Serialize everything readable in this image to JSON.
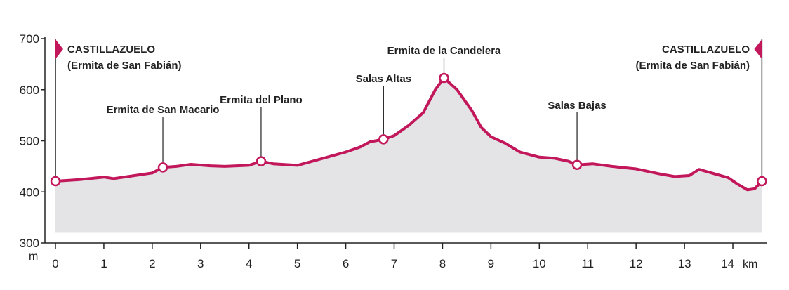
{
  "chart_data": {
    "type": "area",
    "y_unit": "m",
    "x_unit": "km",
    "xlim": [
      0,
      14.6
    ],
    "ylim": [
      300,
      700
    ],
    "area_base": 320,
    "x_ticks": [
      "0",
      "1",
      "2",
      "3",
      "4",
      "5",
      "6",
      "7",
      "8",
      "9",
      "10",
      "11",
      "12",
      "13",
      "14"
    ],
    "y_ticks": [
      "300",
      "400",
      "500",
      "600",
      "700"
    ],
    "colors": {
      "line": "#c2185b",
      "fill": "#e4e4e6",
      "axis": "#222222"
    },
    "profile": [
      [
        0,
        421
      ],
      [
        0.5,
        424
      ],
      [
        1.0,
        429
      ],
      [
        1.2,
        426
      ],
      [
        1.5,
        430
      ],
      [
        2.0,
        437
      ],
      [
        2.22,
        448
      ],
      [
        2.5,
        450
      ],
      [
        2.8,
        454
      ],
      [
        3.2,
        451
      ],
      [
        3.5,
        450
      ],
      [
        4.0,
        452
      ],
      [
        4.25,
        460
      ],
      [
        4.5,
        455
      ],
      [
        5.0,
        452
      ],
      [
        5.5,
        465
      ],
      [
        6.0,
        478
      ],
      [
        6.3,
        488
      ],
      [
        6.5,
        498
      ],
      [
        6.78,
        503
      ],
      [
        7.0,
        510
      ],
      [
        7.3,
        530
      ],
      [
        7.6,
        555
      ],
      [
        7.85,
        600
      ],
      [
        8.03,
        623
      ],
      [
        8.3,
        600
      ],
      [
        8.6,
        560
      ],
      [
        8.8,
        526
      ],
      [
        9.0,
        508
      ],
      [
        9.3,
        495
      ],
      [
        9.6,
        478
      ],
      [
        10.0,
        468
      ],
      [
        10.3,
        466
      ],
      [
        10.6,
        460
      ],
      [
        10.78,
        453
      ],
      [
        11.1,
        455
      ],
      [
        11.5,
        450
      ],
      [
        12.0,
        445
      ],
      [
        12.5,
        435
      ],
      [
        12.8,
        430
      ],
      [
        13.1,
        432
      ],
      [
        13.3,
        444
      ],
      [
        13.6,
        436
      ],
      [
        13.9,
        428
      ],
      [
        14.1,
        415
      ],
      [
        14.3,
        404
      ],
      [
        14.45,
        406
      ],
      [
        14.6,
        421
      ]
    ],
    "waypoints": [
      {
        "x": 0,
        "y": 421,
        "label": ""
      },
      {
        "x": 2.22,
        "y": 448,
        "label": "Ermita de San Macario"
      },
      {
        "x": 4.25,
        "y": 460,
        "label": "Ermita del Plano"
      },
      {
        "x": 6.78,
        "y": 503,
        "label": "Salas Altas"
      },
      {
        "x": 8.03,
        "y": 623,
        "label": "Ermita de la Candelera"
      },
      {
        "x": 10.78,
        "y": 453,
        "label": "Salas Bajas"
      },
      {
        "x": 14.6,
        "y": 421,
        "label": ""
      }
    ],
    "endpoints": {
      "start": {
        "line1": "CASTILLAZUELO",
        "line2": "(Ermita de San Fabián)"
      },
      "end": {
        "line1": "CASTILLAZUELO",
        "line2": "(Ermita de San Fabián)"
      }
    }
  }
}
